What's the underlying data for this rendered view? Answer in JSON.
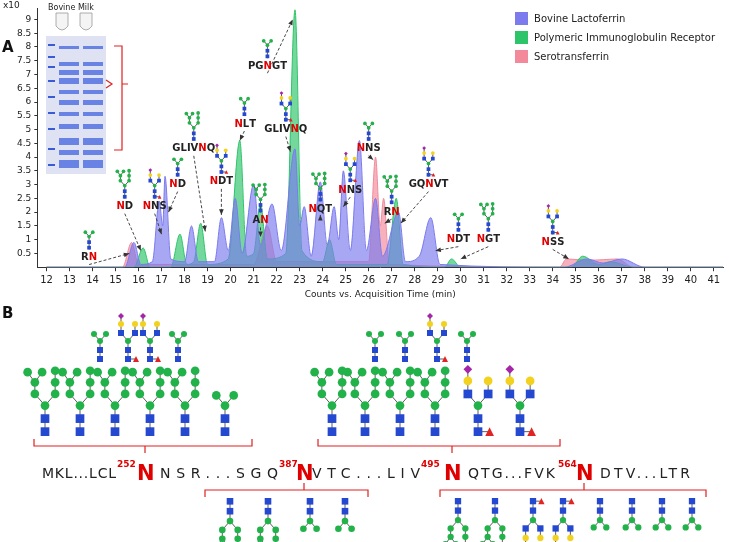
{
  "chart_data": {
    "type": "line",
    "x_label": "Counts vs. Acquisition Time (min)",
    "y_label": "x10",
    "xlim": [
      11.6,
      41.4
    ],
    "xticks": [
      12,
      13,
      14,
      15,
      16,
      17,
      18,
      19,
      20,
      21,
      22,
      23,
      24,
      25,
      26,
      27,
      28,
      29,
      30,
      31,
      32,
      33,
      34,
      35,
      36,
      37,
      38,
      39,
      40,
      41
    ],
    "ylim": [
      0,
      9.4
    ],
    "yticks": [
      0.5,
      1,
      1.5,
      2,
      2.5,
      3,
      3.5,
      4,
      4.5,
      5,
      5.5,
      6,
      6.5,
      7,
      7.5,
      8,
      8.5,
      9
    ],
    "grid": false,
    "legend": "upper right",
    "series": [
      {
        "name": "Bovine Lactoferrin",
        "color": "#7b7bee",
        "x": [
          12,
          15.4,
          15.8,
          16.1,
          16.6,
          16.9,
          17.05,
          17.15,
          17.4,
          18.0,
          18.3,
          18.6,
          19.3,
          19.6,
          19.9,
          20.2,
          20.5,
          21.0,
          21.3,
          21.8,
          22.2,
          22.8,
          23.0,
          23.2,
          23.5,
          23.9,
          24.2,
          24.5,
          24.7,
          24.9,
          25.2,
          25.6,
          25.9,
          26.3,
          26.6,
          27.3,
          27.6,
          28.2,
          28.7,
          29.1,
          34.5,
          35.5,
          36.2,
          37.0,
          38,
          41.4
        ],
        "values": [
          0,
          0,
          0.9,
          0.1,
          0.2,
          2.4,
          1.5,
          3.3,
          0.3,
          0.2,
          1.5,
          0.2,
          0.2,
          1.8,
          0.6,
          2.5,
          0.5,
          3.0,
          0.8,
          2.3,
          0.6,
          4.3,
          1.5,
          2.2,
          0.4,
          3.1,
          0.8,
          2.2,
          1.0,
          3.5,
          0.6,
          4.6,
          0.6,
          2.5,
          0.4,
          2.0,
          0.2,
          0.4,
          1.8,
          0.1,
          0,
          0.3,
          0.15,
          0.3,
          0,
          0
        ]
      },
      {
        "name": "Polymeric Immunoglobulin Receptor",
        "color": "#2ec46a",
        "x": [
          12,
          15.8,
          16.2,
          16.5,
          17.4,
          17.8,
          18.1,
          18.4,
          18.7,
          19.0,
          19.9,
          20.4,
          20.7,
          21.0,
          21.3,
          21.6,
          22.4,
          22.8,
          23.1,
          24.0,
          24.3,
          24.6,
          26.8,
          27.2,
          27.5,
          29.3,
          29.6,
          30,
          34.8,
          35.3,
          36.0,
          36.5,
          37.5,
          41.4
        ],
        "values": [
          0,
          0,
          0.7,
          0,
          0,
          1.2,
          0.1,
          0.2,
          1.6,
          0.1,
          0.3,
          4.6,
          0.4,
          0.5,
          2.3,
          0.3,
          0.5,
          9.35,
          0.6,
          0.2,
          1.0,
          0.1,
          0.1,
          2.5,
          0.1,
          0,
          0.3,
          0,
          0,
          0.4,
          0.1,
          0.2,
          0,
          0
        ]
      },
      {
        "name": "Serotransferrin",
        "color": "#f28a9c",
        "x": [
          12,
          15.3,
          15.7,
          16.0,
          21.0,
          21.6,
          22.0,
          26.0,
          26.3,
          26.5,
          26.65,
          26.9,
          34.3,
          34.6,
          35.6,
          36.8,
          37.5,
          41.4
        ],
        "values": [
          0,
          0,
          0.9,
          0.1,
          0.1,
          1.5,
          0.2,
          0.2,
          4.0,
          1.5,
          2.5,
          0.1,
          0,
          0.3,
          0.25,
          0.3,
          0,
          0
        ]
      }
    ],
    "annotations": [
      {
        "text": "RN",
        "x": 13.85,
        "y": 0.35,
        "point": [
          15.6,
          0.5
        ]
      },
      {
        "text": "ND",
        "x": 15.4,
        "y": 2.2,
        "point": [
          16.1,
          0.6
        ]
      },
      {
        "text": "NNS",
        "x": 16.7,
        "y": 2.2,
        "point": [
          17.0,
          1.2
        ]
      },
      {
        "text": "ND",
        "x": 17.7,
        "y": 3.0,
        "point": [
          17.3,
          2.0
        ]
      },
      {
        "text": "GLIVNQ",
        "x": 18.4,
        "y": 4.3,
        "point": [
          18.9,
          1.3
        ]
      },
      {
        "text": "NDT",
        "x": 19.6,
        "y": 3.1,
        "point": [
          19.6,
          1.9
        ]
      },
      {
        "text": "NLT",
        "x": 20.6,
        "y": 5.2,
        "point": [
          20.4,
          4.6
        ]
      },
      {
        "text": "AN",
        "x": 21.3,
        "y": 1.7,
        "point": [
          21.3,
          1.1
        ]
      },
      {
        "text": "GLIVNQ",
        "x": 22.4,
        "y": 5.0,
        "point": [
          22.6,
          4.2
        ]
      },
      {
        "text": "PGNGT",
        "x": 21.6,
        "y": 7.3,
        "point": [
          22.7,
          9.0
        ]
      },
      {
        "text": "NQT",
        "x": 23.9,
        "y": 2.1,
        "point": [
          23.9,
          1.9
        ]
      },
      {
        "text": "NNS",
        "x": 25.2,
        "y": 2.8,
        "point": [
          24.9,
          2.2
        ]
      },
      {
        "text": "NNS",
        "x": 26.0,
        "y": 4.3,
        "point": [
          26.2,
          3.9
        ]
      },
      {
        "text": "RN",
        "x": 27.0,
        "y": 2.0,
        "point": [
          26.7,
          1.6
        ]
      },
      {
        "text": "GQNVT",
        "x": 28.6,
        "y": 3.0,
        "point": [
          27.4,
          1.6
        ]
      },
      {
        "text": "NDT",
        "x": 29.9,
        "y": 1.0,
        "point": [
          28.9,
          0.6
        ]
      },
      {
        "text": "NGT",
        "x": 31.2,
        "y": 1.0,
        "point": [
          30.0,
          0.3
        ]
      },
      {
        "text": "NSS",
        "x": 34.0,
        "y": 0.9,
        "point": [
          34.7,
          0.3
        ]
      }
    ]
  },
  "panel_labels": [
    "A",
    "B"
  ],
  "inset": {
    "title": "Bovine Milk"
  },
  "sequence": {
    "segments": [
      "MKL...LCL",
      "NSR...SGQ",
      "VTC...LIV",
      "QTG...FVK",
      "DTV...LTR"
    ],
    "sites": [
      {
        "number": 252,
        "residue": "N"
      },
      {
        "number": 387,
        "residue": "N"
      },
      {
        "number": 495,
        "residue": "N"
      },
      {
        "number": 564,
        "residue": "N"
      }
    ]
  }
}
